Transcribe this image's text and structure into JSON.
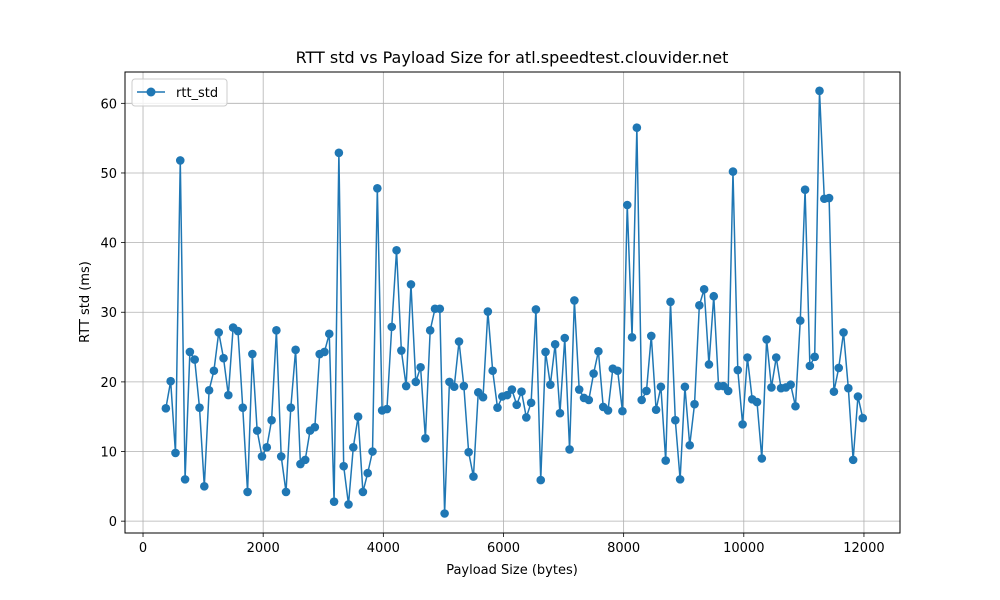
{
  "chart_data": {
    "type": "line",
    "title": "RTT std vs Payload Size for atl.speedtest.clouvider.net",
    "xlabel": "Payload Size (bytes)",
    "ylabel": "RTT std (ms)",
    "xlim": [
      -300,
      12600
    ],
    "ylim": [
      -1.7,
      64.5
    ],
    "xticks": [
      0,
      2000,
      4000,
      6000,
      8000,
      10000,
      12000
    ],
    "yticks": [
      0,
      10,
      20,
      30,
      40,
      50,
      60
    ],
    "grid": true,
    "legend_position": "top-left",
    "color": "#1f77b4",
    "series": [
      {
        "name": "rtt_std",
        "x": [
          380,
          460,
          540,
          620,
          700,
          780,
          860,
          940,
          1020,
          1100,
          1180,
          1260,
          1340,
          1420,
          1500,
          1580,
          1660,
          1740,
          1820,
          1900,
          1980,
          2060,
          2140,
          2220,
          2300,
          2380,
          2460,
          2540,
          2620,
          2700,
          2780,
          2860,
          2940,
          3020,
          3100,
          3180,
          3260,
          3340,
          3420,
          3500,
          3580,
          3660,
          3740,
          3820,
          3900,
          3980,
          4060,
          4140,
          4220,
          4300,
          4380,
          4460,
          4540,
          4620,
          4700,
          4780,
          4860,
          4940,
          5020,
          5100,
          5180,
          5260,
          5340,
          5420,
          5500,
          5580,
          5660,
          5740,
          5820,
          5900,
          5980,
          6060,
          6140,
          6220,
          6300,
          6380,
          6460,
          6540,
          6620,
          6700,
          6780,
          6860,
          6940,
          7020,
          7100,
          7180,
          7260,
          7340,
          7420,
          7500,
          7580,
          7660,
          7740,
          7820,
          7900,
          7980,
          8060,
          8140,
          8220,
          8300,
          8380,
          8460,
          8540,
          8620,
          8700,
          8780,
          8860,
          8940,
          9020,
          9100,
          9180,
          9260,
          9340,
          9420,
          9500,
          9580,
          9660,
          9740,
          9820,
          9900,
          9980,
          10060,
          10140,
          10220,
          10300,
          10380,
          10460,
          10540,
          10620,
          10700,
          10780,
          10860,
          10940,
          11020,
          11100,
          11180,
          11260,
          11340,
          11420,
          11500,
          11580,
          11660,
          11740,
          11820,
          11900,
          11980
        ],
        "y": [
          16.2,
          20.1,
          9.8,
          51.8,
          6.0,
          24.3,
          23.2,
          16.3,
          5.0,
          18.8,
          21.6,
          27.1,
          23.4,
          18.1,
          27.8,
          27.3,
          16.3,
          4.2,
          24.0,
          13.0,
          9.3,
          10.6,
          14.5,
          27.4,
          9.3,
          4.2,
          16.3,
          24.6,
          8.2,
          8.8,
          13.0,
          13.5,
          24.0,
          24.3,
          26.9,
          2.8,
          52.9,
          7.9,
          2.4,
          10.6,
          15.0,
          4.2,
          6.9,
          10.0,
          47.8,
          15.9,
          16.1,
          27.9,
          38.9,
          24.5,
          19.4,
          34.0,
          20.0,
          22.1,
          11.9,
          27.4,
          30.5,
          30.5,
          1.1,
          20.0,
          19.3,
          25.8,
          19.4,
          9.9,
          6.4,
          18.5,
          17.8,
          30.1,
          21.6,
          16.3,
          17.9,
          18.1,
          18.9,
          16.7,
          18.6,
          14.9,
          17.0,
          30.4,
          5.9,
          24.3,
          19.6,
          25.4,
          15.5,
          26.3,
          10.3,
          31.7,
          18.9,
          17.7,
          17.4,
          21.2,
          24.4,
          16.4,
          15.9,
          21.9,
          21.6,
          15.8,
          45.4,
          26.4,
          56.5,
          17.4,
          18.7,
          26.6,
          16.0,
          19.3,
          8.7,
          31.5,
          14.5,
          6.0,
          19.3,
          10.9,
          16.8,
          31.0,
          33.3,
          22.5,
          32.3,
          19.4,
          19.4,
          18.7,
          50.2,
          21.7,
          13.9,
          23.5,
          17.5,
          17.1,
          9.0,
          26.1,
          19.2,
          23.5,
          19.1,
          19.2,
          19.6,
          16.5,
          28.8,
          47.6,
          22.3,
          23.6,
          61.8,
          46.3,
          46.4,
          18.6,
          22.0,
          27.1,
          19.1,
          8.8,
          17.9,
          14.8
        ]
      }
    ]
  }
}
